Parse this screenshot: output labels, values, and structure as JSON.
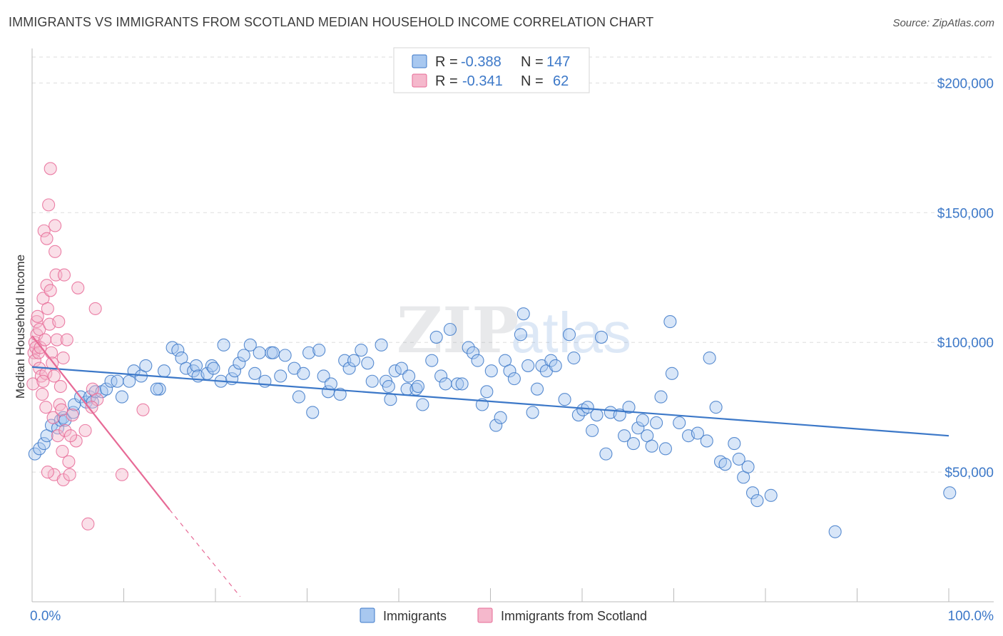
{
  "title": "IMMIGRANTS VS IMMIGRANTS FROM SCOTLAND MEDIAN HOUSEHOLD INCOME CORRELATION CHART",
  "source": "Source: ZipAtlas.com",
  "watermark": {
    "part1": "ZIP",
    "part2": "atlas"
  },
  "colors": {
    "blue": "#3c78c8",
    "blue_fill": "#a8c8f0",
    "pink": "#e76a96",
    "pink_fill": "#f5b8cc",
    "grid": "#dddddd"
  },
  "chart_data": {
    "type": "scatter",
    "title": "IMMIGRANTS VS IMMIGRANTS FROM SCOTLAND MEDIAN HOUSEHOLD INCOME CORRELATION CHART",
    "xlabel": "",
    "ylabel": "Median Household Income",
    "xlim": [
      0,
      100
    ],
    "ylim": [
      0,
      210000
    ],
    "x_tick_labels": [
      "0.0%",
      "100.0%"
    ],
    "y_ticks": [
      {
        "value": 200000,
        "label": "$200,000"
      },
      {
        "value": 150000,
        "label": "$150,000"
      },
      {
        "value": 100000,
        "label": "$100,000"
      },
      {
        "value": 50000,
        "label": "$50,000"
      }
    ],
    "legend": [
      {
        "series": "Immigrants",
        "r_label": "R =",
        "r": "-0.388",
        "n_label": "N =",
        "n": "147"
      },
      {
        "series": "Immigrants from Scotland",
        "r_label": "R =",
        "r": "-0.341",
        "n_label": "N =",
        "n": "62"
      }
    ],
    "series": [
      {
        "name": "Immigrants",
        "color": "#3c78c8",
        "trend": {
          "x0": 0,
          "y0": 90500,
          "x1": 100,
          "y1": 64000
        },
        "points": [
          [
            0.3,
            57000
          ],
          [
            0.8,
            59000
          ],
          [
            1.3,
            61000
          ],
          [
            1.6,
            64000
          ],
          [
            2.1,
            68000
          ],
          [
            2.8,
            67000
          ],
          [
            3.1,
            70000
          ],
          [
            3.4,
            71000
          ],
          [
            3.6,
            70000
          ],
          [
            4.5,
            73000
          ],
          [
            4.6,
            76000
          ],
          [
            5.3,
            79000
          ],
          [
            5.9,
            77000
          ],
          [
            6.3,
            79000
          ],
          [
            6.6,
            77000
          ],
          [
            6.9,
            81000
          ],
          [
            7.6,
            81000
          ],
          [
            8.1,
            82000
          ],
          [
            8.6,
            85000
          ],
          [
            9.3,
            85000
          ],
          [
            9.8,
            79000
          ],
          [
            10.6,
            85000
          ],
          [
            11.1,
            89000
          ],
          [
            11.9,
            87000
          ],
          [
            12.4,
            91000
          ],
          [
            13.9,
            82000
          ],
          [
            13.6,
            82000
          ],
          [
            14.4,
            89000
          ],
          [
            15.3,
            98000
          ],
          [
            15.9,
            97000
          ],
          [
            16.3,
            94000
          ],
          [
            16.8,
            90000
          ],
          [
            17.6,
            89000
          ],
          [
            17.9,
            91000
          ],
          [
            18.1,
            87000
          ],
          [
            19.1,
            88000
          ],
          [
            19.6,
            91000
          ],
          [
            20.6,
            85000
          ],
          [
            19.8,
            90000
          ],
          [
            20.9,
            99000
          ],
          [
            21.8,
            86000
          ],
          [
            22.1,
            89000
          ],
          [
            22.6,
            92000
          ],
          [
            23.1,
            95000
          ],
          [
            23.8,
            99000
          ],
          [
            24.3,
            88000
          ],
          [
            24.8,
            96000
          ],
          [
            25.4,
            85000
          ],
          [
            26.1,
            96000
          ],
          [
            26.3,
            96000
          ],
          [
            27.1,
            87000
          ],
          [
            27.6,
            95000
          ],
          [
            28.6,
            90000
          ],
          [
            29.1,
            79000
          ],
          [
            29.6,
            88000
          ],
          [
            30.2,
            96000
          ],
          [
            30.6,
            73000
          ],
          [
            31.3,
            97000
          ],
          [
            31.8,
            87000
          ],
          [
            32.3,
            81000
          ],
          [
            32.6,
            84000
          ],
          [
            33.6,
            80000
          ],
          [
            34.1,
            93000
          ],
          [
            34.6,
            90000
          ],
          [
            35.1,
            93000
          ],
          [
            35.9,
            97000
          ],
          [
            36.6,
            92000
          ],
          [
            37.1,
            85000
          ],
          [
            38.1,
            99000
          ],
          [
            38.6,
            85000
          ],
          [
            38.9,
            83000
          ],
          [
            39.1,
            78000
          ],
          [
            39.6,
            89000
          ],
          [
            40.3,
            90000
          ],
          [
            40.9,
            82000
          ],
          [
            41.1,
            87000
          ],
          [
            41.9,
            82000
          ],
          [
            42.1,
            83000
          ],
          [
            42.6,
            76000
          ],
          [
            43.6,
            93000
          ],
          [
            44.1,
            102000
          ],
          [
            44.6,
            87000
          ],
          [
            45.1,
            84000
          ],
          [
            45.6,
            105000
          ],
          [
            46.4,
            84000
          ],
          [
            46.9,
            84000
          ],
          [
            47.6,
            98000
          ],
          [
            48.1,
            96000
          ],
          [
            48.6,
            93000
          ],
          [
            49.1,
            76000
          ],
          [
            49.6,
            81000
          ],
          [
            50.1,
            89000
          ],
          [
            50.6,
            68000
          ],
          [
            51.1,
            71000
          ],
          [
            51.6,
            93000
          ],
          [
            52.1,
            89000
          ],
          [
            52.6,
            86000
          ],
          [
            53.3,
            103000
          ],
          [
            53.6,
            111000
          ],
          [
            54.1,
            91000
          ],
          [
            54.6,
            73000
          ],
          [
            55.1,
            82000
          ],
          [
            55.6,
            91000
          ],
          [
            56.1,
            89000
          ],
          [
            56.6,
            93000
          ],
          [
            57.1,
            91000
          ],
          [
            58.1,
            78000
          ],
          [
            58.6,
            103000
          ],
          [
            59.1,
            94000
          ],
          [
            59.6,
            72000
          ],
          [
            60.1,
            74000
          ],
          [
            60.6,
            75000
          ],
          [
            61.1,
            66000
          ],
          [
            61.6,
            72000
          ],
          [
            62.1,
            102000
          ],
          [
            62.6,
            57000
          ],
          [
            63.1,
            73000
          ],
          [
            64.1,
            72000
          ],
          [
            64.6,
            64000
          ],
          [
            65.1,
            75000
          ],
          [
            65.6,
            61000
          ],
          [
            66.1,
            67000
          ],
          [
            66.6,
            70000
          ],
          [
            67.1,
            64000
          ],
          [
            67.6,
            60000
          ],
          [
            68.1,
            69000
          ],
          [
            68.6,
            79000
          ],
          [
            69.1,
            59000
          ],
          [
            69.6,
            108000
          ],
          [
            69.8,
            88000
          ],
          [
            70.6,
            69000
          ],
          [
            71.6,
            64000
          ],
          [
            72.6,
            65000
          ],
          [
            73.6,
            62000
          ],
          [
            73.9,
            94000
          ],
          [
            74.6,
            75000
          ],
          [
            75.1,
            54000
          ],
          [
            75.6,
            53000
          ],
          [
            76.6,
            61000
          ],
          [
            77.1,
            55000
          ],
          [
            77.6,
            48000
          ],
          [
            78.1,
            52000
          ],
          [
            78.6,
            42000
          ],
          [
            79.1,
            39000
          ],
          [
            80.6,
            41000
          ],
          [
            87.6,
            27000
          ],
          [
            100.1,
            42000
          ]
        ]
      },
      {
        "name": "Immigrants from Scotland",
        "color": "#e76a96",
        "trend": {
          "x0": 0,
          "y0": 102500,
          "x1": 15,
          "y1": 35500
        },
        "trend_dashed_end": {
          "x": 22.7,
          "y": 2000
        },
        "points": [
          [
            0.1,
            84000
          ],
          [
            0.2,
            96000
          ],
          [
            0.3,
            100000
          ],
          [
            0.3,
            93000
          ],
          [
            0.4,
            98000
          ],
          [
            0.5,
            108000
          ],
          [
            0.5,
            103000
          ],
          [
            0.6,
            110000
          ],
          [
            0.7,
            96000
          ],
          [
            0.8,
            105000
          ],
          [
            0.8,
            90000
          ],
          [
            0.9,
            98000
          ],
          [
            1.0,
            87000
          ],
          [
            1.1,
            80000
          ],
          [
            1.2,
            117000
          ],
          [
            1.3,
            143000
          ],
          [
            1.4,
            101000
          ],
          [
            1.5,
            88000
          ],
          [
            1.5,
            75000
          ],
          [
            1.6,
            140000
          ],
          [
            1.6,
            122000
          ],
          [
            1.7,
            113000
          ],
          [
            1.8,
            153000
          ],
          [
            1.9,
            107000
          ],
          [
            2.0,
            120000
          ],
          [
            2.1,
            96000
          ],
          [
            2.2,
            92000
          ],
          [
            2.3,
            71000
          ],
          [
            2.4,
            87000
          ],
          [
            2.4,
            49000
          ],
          [
            2.5,
            135000
          ],
          [
            2.5,
            145000
          ],
          [
            2.6,
            126000
          ],
          [
            2.7,
            101000
          ],
          [
            2.8,
            64000
          ],
          [
            2.9,
            108000
          ],
          [
            3.0,
            76000
          ],
          [
            3.1,
            83000
          ],
          [
            3.2,
            74000
          ],
          [
            3.3,
            58000
          ],
          [
            3.4,
            47000
          ],
          [
            3.5,
            126000
          ],
          [
            3.6,
            66000
          ],
          [
            3.8,
            101000
          ],
          [
            4.0,
            54000
          ],
          [
            4.1,
            49000
          ],
          [
            4.4,
            72000
          ],
          [
            4.8,
            62000
          ],
          [
            5.0,
            121000
          ],
          [
            5.8,
            66000
          ],
          [
            6.1,
            30000
          ],
          [
            6.6,
            82000
          ],
          [
            6.9,
            113000
          ],
          [
            7.1,
            78000
          ],
          [
            9.8,
            49000
          ],
          [
            12.1,
            74000
          ],
          [
            6.5,
            75000
          ],
          [
            4.2,
            64000
          ],
          [
            1.7,
            50000
          ],
          [
            2.0,
            167000
          ],
          [
            3.4,
            94000
          ],
          [
            1.2,
            85000
          ]
        ]
      }
    ]
  }
}
